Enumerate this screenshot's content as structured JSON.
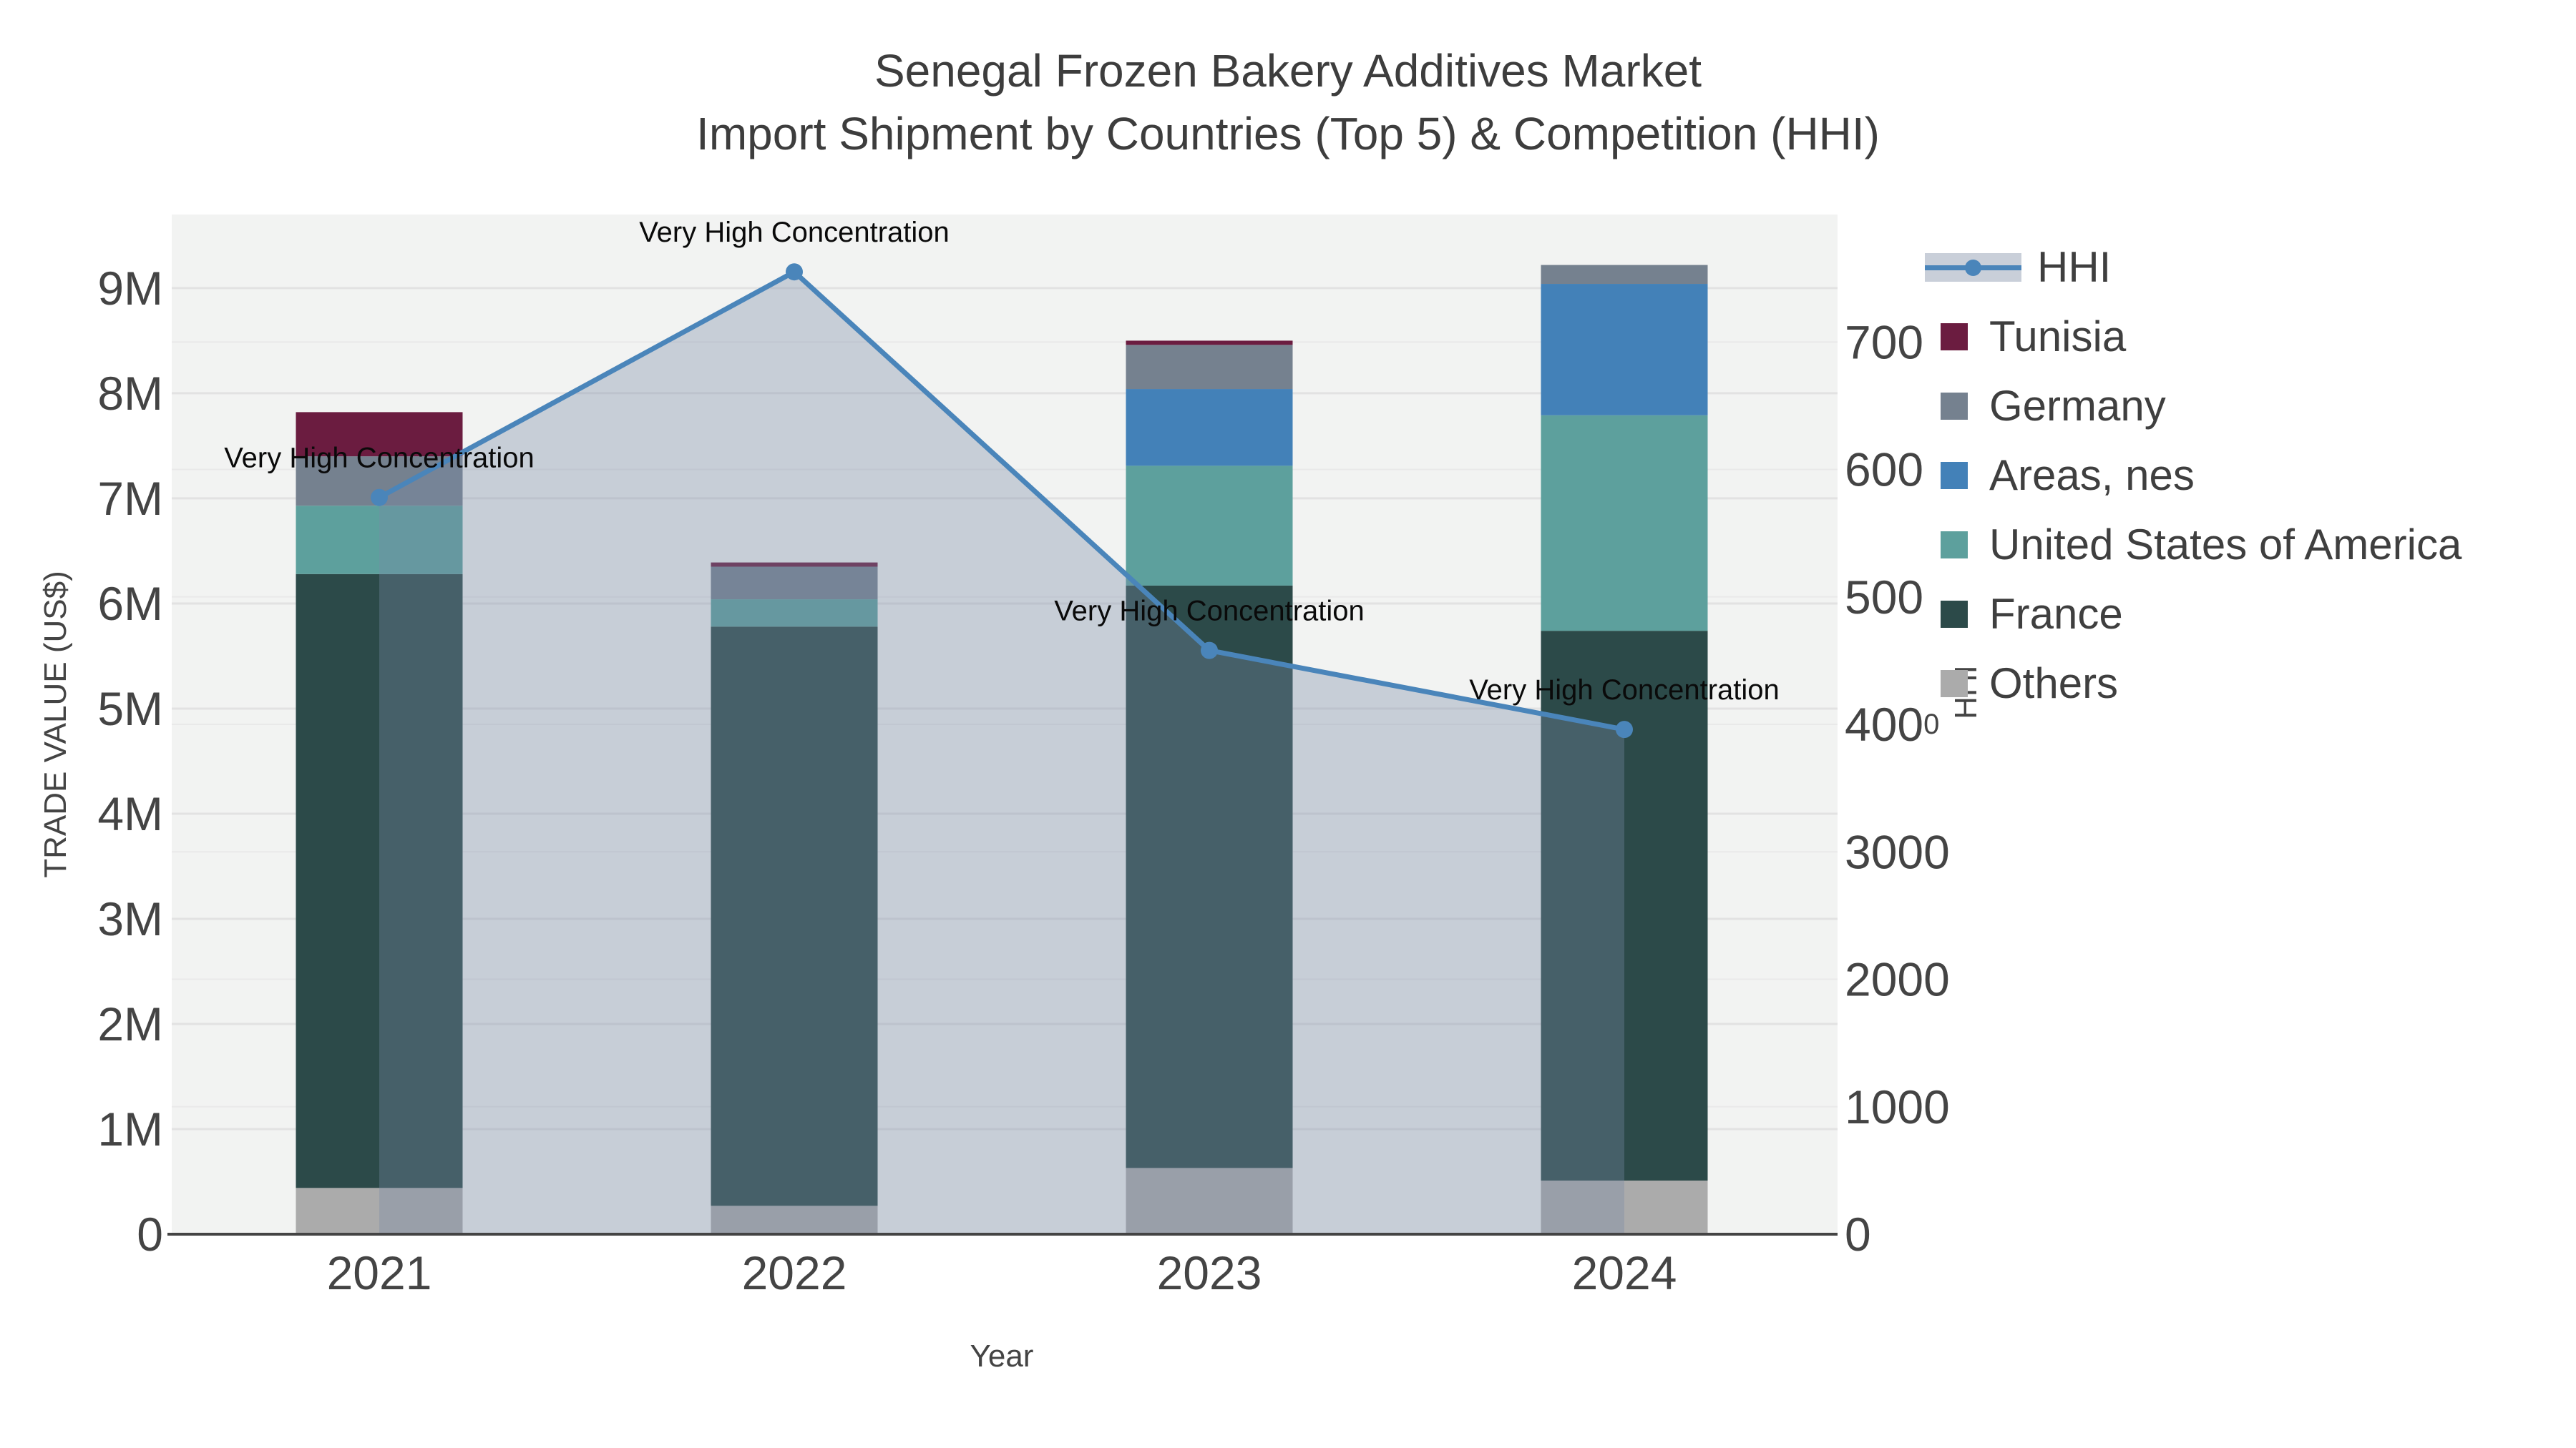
{
  "title": {
    "line1": "Senegal Frozen Bakery Additives Market",
    "line2": "Import Shipment by Countries (Top 5) & Competition (HHI)"
  },
  "axes": {
    "x": {
      "title": "Year",
      "categories": [
        "2021",
        "2022",
        "2023",
        "2024"
      ]
    },
    "y_left": {
      "title": "TRADE VALUE (US$)",
      "tick_labels": [
        "0",
        "1M",
        "2M",
        "3M",
        "4M",
        "5M",
        "6M",
        "7M",
        "8M",
        "9M"
      ],
      "range": [
        0,
        9700000
      ]
    },
    "y_right": {
      "title": "HHI",
      "lower_tick_labels": [
        "0",
        "1000",
        "2000",
        "3000",
        "4000"
      ],
      "upper_tick_labels": [
        "500",
        "600",
        "700"
      ],
      "range": [
        0,
        8000
      ]
    }
  },
  "legend": {
    "items": [
      {
        "label": "HHI",
        "type": "line",
        "color": "#4A85BA",
        "band_color": "#C9CFD9"
      },
      {
        "label": "Tunisia",
        "type": "square",
        "color": "#6B1C40"
      },
      {
        "label": "Germany",
        "type": "square",
        "color": "#75818F"
      },
      {
        "label": "Areas, nes",
        "type": "square",
        "color": "#4381B8"
      },
      {
        "label": "United States of America",
        "type": "square",
        "color": "#5DA09D"
      },
      {
        "label": "France",
        "type": "square",
        "color": "#2C4A49"
      },
      {
        "label": "Others",
        "type": "square",
        "color": "#ABABAB"
      }
    ]
  },
  "chart_data": {
    "type": "bar",
    "stacked": true,
    "categories": [
      "2021",
      "2022",
      "2023",
      "2024"
    ],
    "bar_value_unit": "US$",
    "ylabel_left": "TRADE VALUE (US$)",
    "ylabel_right": "HHI",
    "xlabel": "Year",
    "y_left_range": [
      0,
      9700000
    ],
    "y_right_range": [
      0,
      8000
    ],
    "grid": true,
    "legend_position": "right",
    "plot_bg": "#F2F3F2",
    "series": [
      {
        "name": "Others",
        "color": "#ABABAB",
        "values": [
          440000,
          270000,
          630000,
          510000
        ]
      },
      {
        "name": "France",
        "color": "#2C4A49",
        "values": [
          5840000,
          5510000,
          5540000,
          5230000
        ]
      },
      {
        "name": "United States of America",
        "color": "#5DA09D",
        "values": [
          650000,
          260000,
          1140000,
          2050000
        ]
      },
      {
        "name": "Areas, nes",
        "color": "#4381B8",
        "values": [
          0,
          0,
          730000,
          1250000
        ]
      },
      {
        "name": "Germany",
        "color": "#75818F",
        "values": [
          470000,
          310000,
          420000,
          180000
        ]
      },
      {
        "name": "Tunisia",
        "color": "#6B1C40",
        "values": [
          420000,
          40000,
          40000,
          0
        ]
      }
    ],
    "totals_usd": [
      7820000,
      6390000,
      8500000,
      9220000
    ],
    "line_series": {
      "name": "HHI",
      "axis": "y_right",
      "color": "#4A85BA",
      "fill_color": "rgba(120,138,166,0.35)",
      "values": [
        5780,
        7550,
        4580,
        3960
      ]
    },
    "annotations": [
      {
        "text": "Very High Concentration",
        "category": "2021"
      },
      {
        "text": "Very High Concentration",
        "category": "2022"
      },
      {
        "text": "Very High Concentration",
        "category": "2023"
      },
      {
        "text": "Very High Concentration",
        "category": "2024"
      }
    ]
  }
}
